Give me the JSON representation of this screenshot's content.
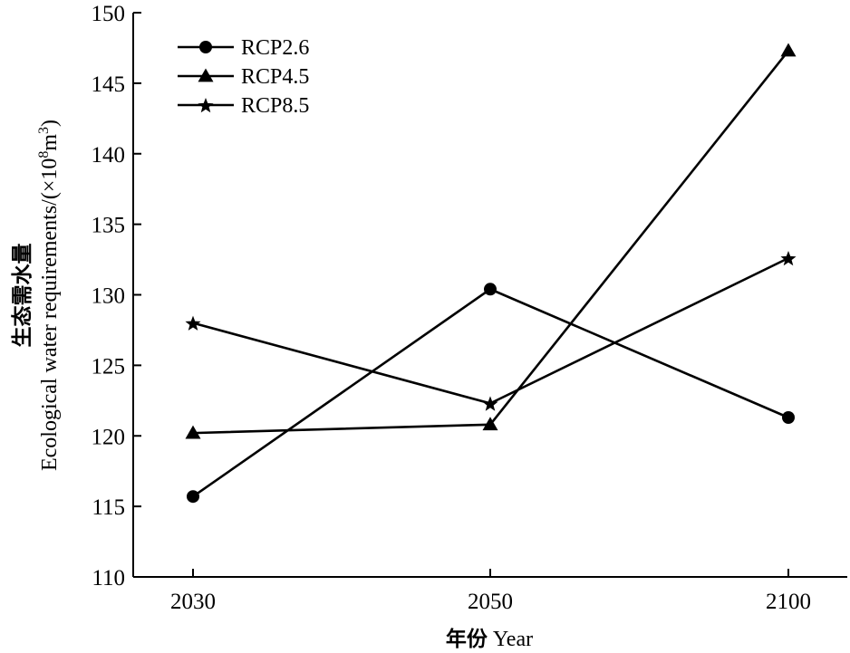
{
  "chart_data": {
    "type": "line",
    "categories": [
      "2030",
      "2050",
      "2100"
    ],
    "series": [
      {
        "name": "RCP2.6",
        "marker": "circle",
        "values": [
          115.7,
          130.4,
          121.3
        ]
      },
      {
        "name": "RCP4.5",
        "marker": "triangle",
        "values": [
          120.2,
          120.8,
          147.3
        ]
      },
      {
        "name": "RCP8.5",
        "marker": "star",
        "values": [
          128.0,
          122.3,
          132.6
        ]
      }
    ],
    "title": "",
    "xlabel_cn": "年份",
    "xlabel": "Year",
    "ylabel_cn": "生态需水量",
    "ylabel": "Ecological water requirements/(×10",
    "ylabel_sup": "8",
    "ylabel_unit": "m",
    "ylabel_unit_sup": "3",
    "ylabel_close": ")",
    "ylim": [
      110,
      150
    ],
    "yticks": [
      110,
      115,
      120,
      125,
      130,
      135,
      140,
      145,
      150
    ],
    "legend_position": "top-left",
    "grid": false,
    "line_color": "#000000"
  }
}
